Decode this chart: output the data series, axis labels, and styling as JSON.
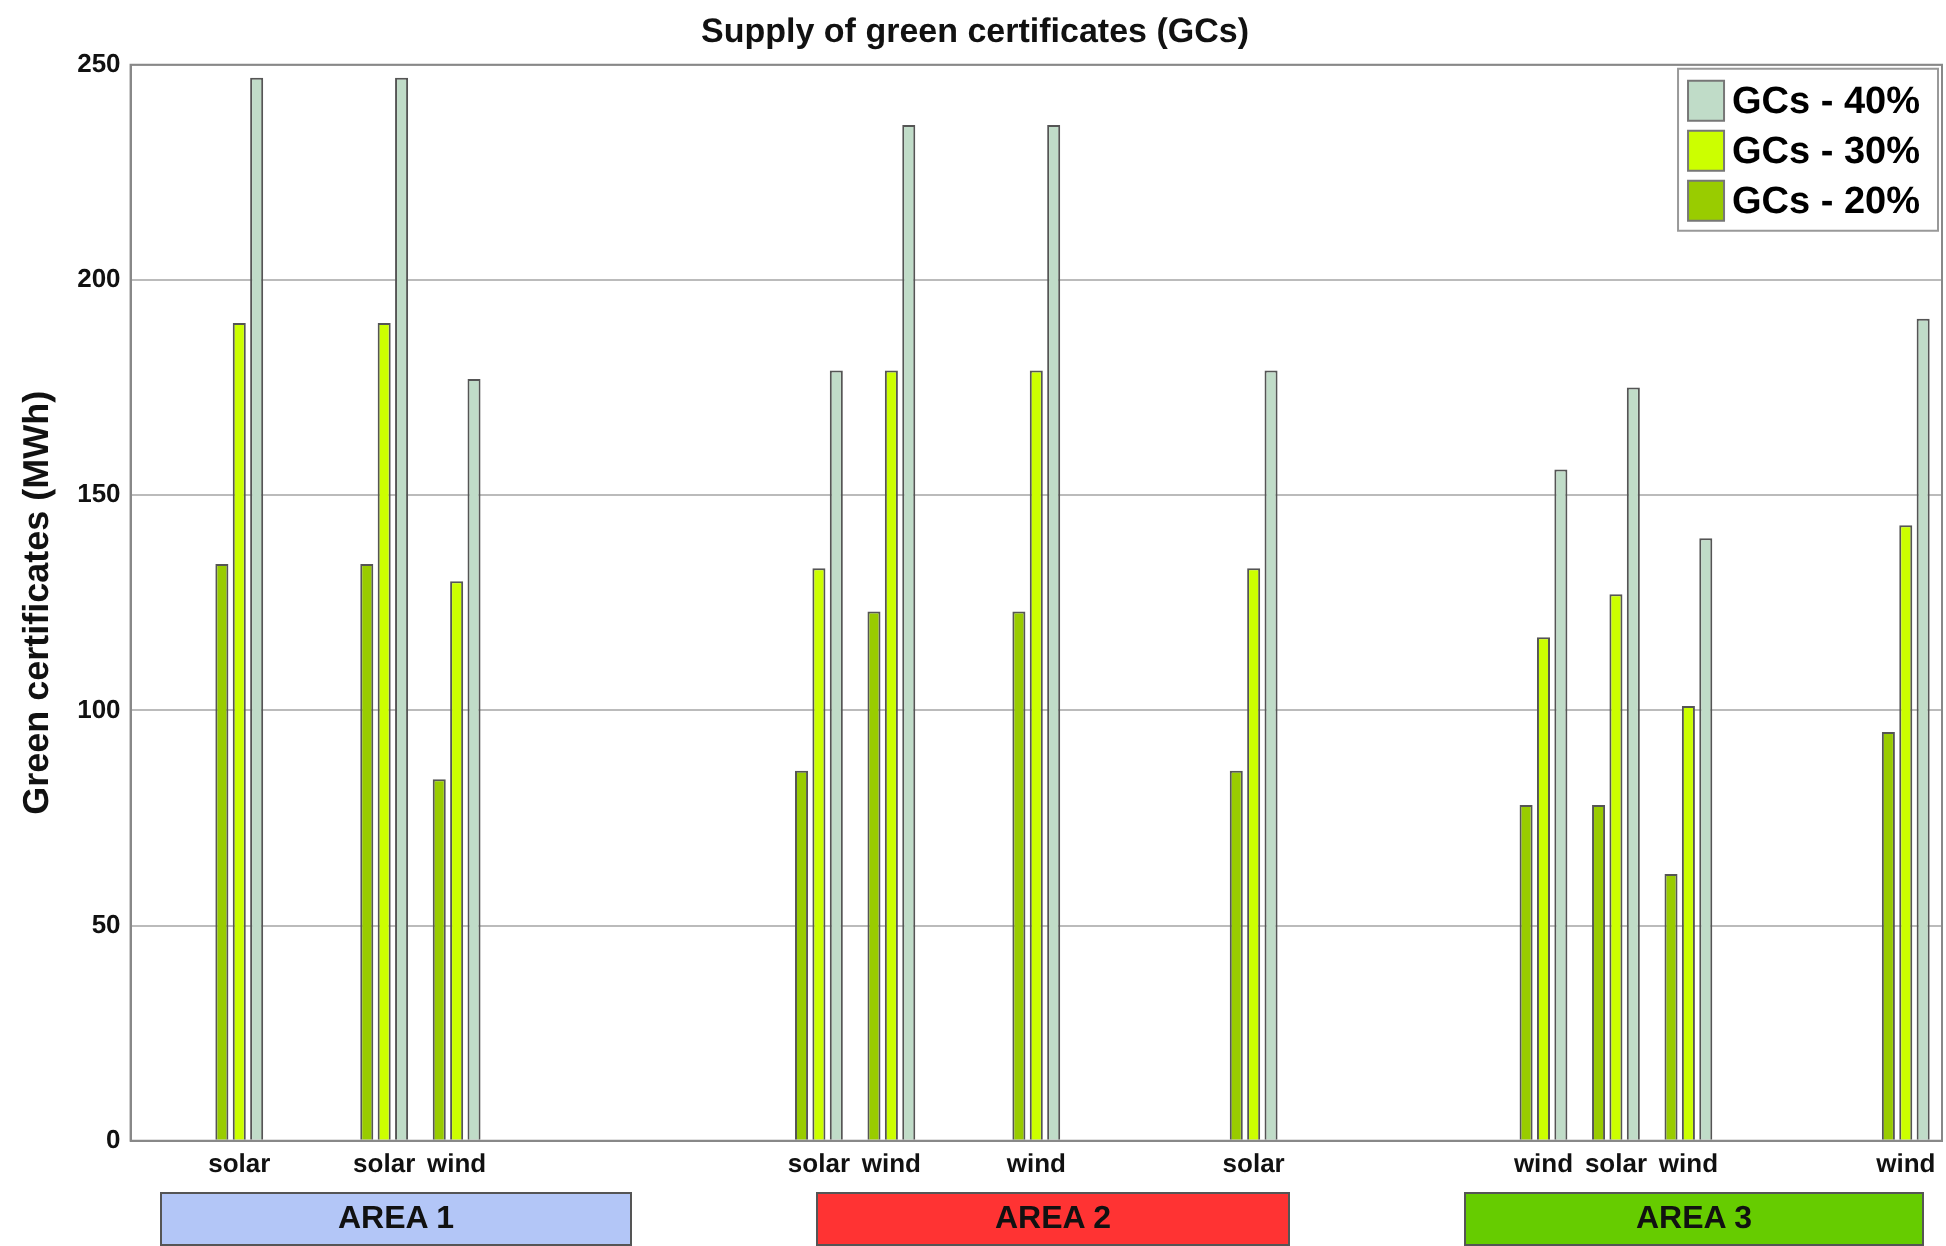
{
  "chart_data": {
    "type": "bar",
    "title": "Supply of green certificates (GCs)",
    "ylabel": "Green certificates (MWh)",
    "categories": [
      null,
      "solar",
      null,
      "solar",
      "wind",
      null,
      null,
      null,
      null,
      "solar",
      "wind",
      null,
      "wind",
      null,
      null,
      "solar",
      null,
      null,
      null,
      "wind",
      "solar",
      "wind",
      null,
      null,
      "wind"
    ],
    "series": [
      {
        "name": "GCs - 20%",
        "color": "#99cc00",
        "values": [
          null,
          134,
          null,
          134,
          84,
          null,
          null,
          null,
          null,
          86,
          123,
          null,
          123,
          null,
          null,
          86,
          null,
          null,
          null,
          78,
          78,
          62,
          null,
          null,
          95
        ]
      },
      {
        "name": "GCs - 30%",
        "color": "#ccff00",
        "values": [
          null,
          190,
          null,
          190,
          130,
          null,
          null,
          null,
          null,
          133,
          179,
          null,
          179,
          null,
          null,
          133,
          null,
          null,
          null,
          117,
          127,
          101,
          null,
          null,
          143
        ]
      },
      {
        "name": "GCs - 40%",
        "color": "#c0dcc8",
        "values": [
          null,
          247,
          null,
          247,
          177,
          null,
          null,
          null,
          null,
          179,
          236,
          null,
          236,
          null,
          null,
          179,
          null,
          null,
          null,
          156,
          175,
          140,
          null,
          null,
          191
        ]
      }
    ],
    "ylim": [
      0,
      250
    ],
    "yticks": [
      0,
      50,
      100,
      150,
      200,
      250
    ],
    "grid": "y",
    "legend": "top right",
    "annotations": [
      "AREA 1",
      "AREA 2",
      "AREA 3"
    ]
  }
}
